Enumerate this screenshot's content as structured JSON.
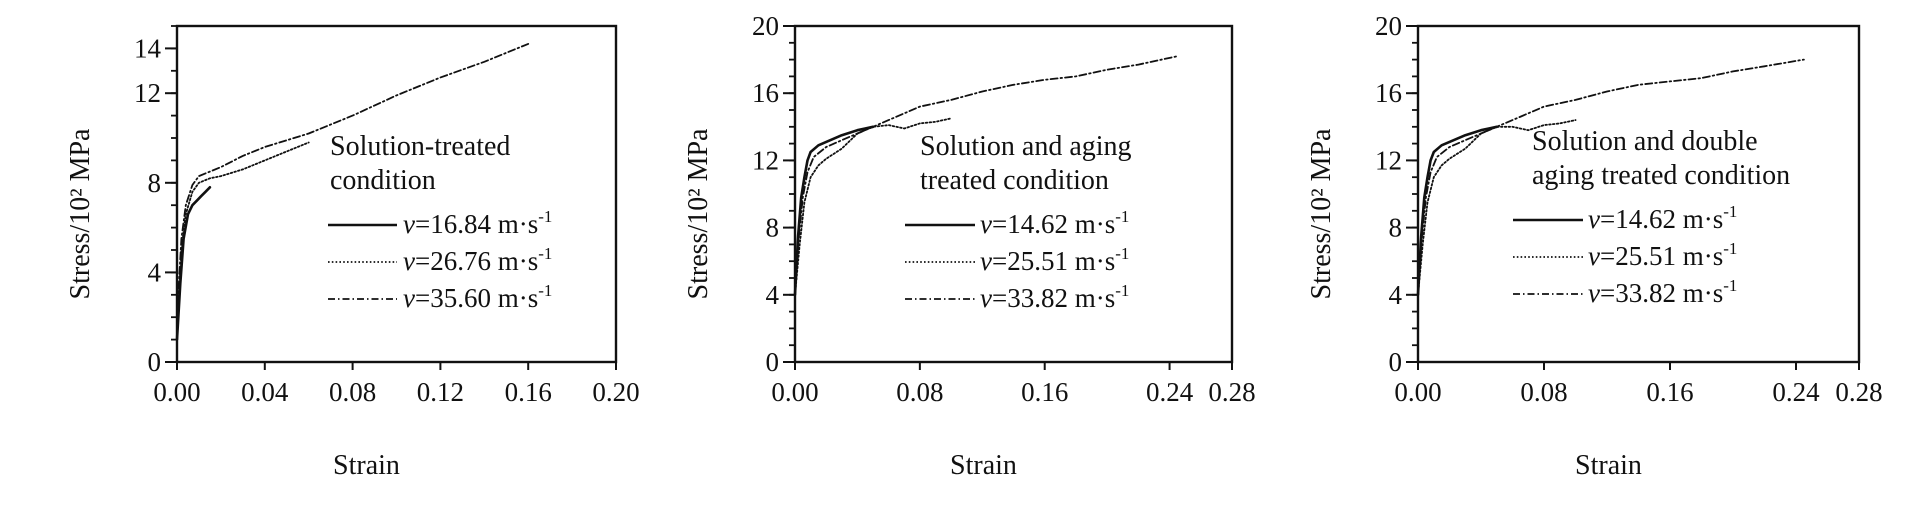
{
  "chart_data": [
    {
      "type": "line",
      "xlabel": "Strain",
      "ylabel": "Stress/10² MPa",
      "xlim": [
        0,
        0.2
      ],
      "ylim": [
        0,
        15
      ],
      "xticks": [
        "0.00",
        "0.04",
        "0.08",
        "0.12",
        "0.16",
        "0.20"
      ],
      "yticks": [
        "0",
        "4",
        "8",
        "12",
        "14"
      ],
      "legend_title": [
        "Solution-treated",
        "condition"
      ],
      "series": [
        {
          "name": "v=16.84 m·s-1",
          "label_prefix": "v",
          "label_value": "=16.84 m·s",
          "label_sup": "-1",
          "style": "solid",
          "x": [
            0.0,
            0.0015,
            0.003,
            0.005,
            0.007,
            0.009,
            0.011,
            0.013,
            0.015
          ],
          "y": [
            1.0,
            3.5,
            5.5,
            6.6,
            7.0,
            7.2,
            7.4,
            7.6,
            7.8
          ]
        },
        {
          "name": "v=26.76 m·s-1",
          "label_prefix": "v",
          "label_value": "=26.76 m·s",
          "label_sup": "-1",
          "style": "dotted",
          "x": [
            0.0,
            0.002,
            0.004,
            0.007,
            0.01,
            0.015,
            0.02,
            0.03,
            0.04,
            0.05,
            0.06
          ],
          "y": [
            1.5,
            5.0,
            6.6,
            7.6,
            8.0,
            8.2,
            8.3,
            8.6,
            9.0,
            9.4,
            9.8
          ]
        },
        {
          "name": "v=35.60 m·s-1",
          "label_prefix": "v",
          "label_value": "=35.60 m·s",
          "label_sup": "-1",
          "style": "dashdot",
          "x": [
            0.0,
            0.002,
            0.004,
            0.007,
            0.01,
            0.02,
            0.03,
            0.04,
            0.06,
            0.08,
            0.1,
            0.12,
            0.14,
            0.16
          ],
          "y": [
            2.0,
            5.5,
            7.0,
            7.9,
            8.3,
            8.7,
            9.2,
            9.6,
            10.2,
            11.0,
            11.9,
            12.7,
            13.4,
            14.2
          ]
        }
      ]
    },
    {
      "type": "line",
      "xlabel": "Strain",
      "ylabel": "Stress/10² MPa",
      "xlim": [
        0,
        0.28
      ],
      "ylim": [
        0,
        20
      ],
      "xticks": [
        "0.00",
        "0.08",
        "0.16",
        "0.24",
        "0.28"
      ],
      "yticks": [
        "0",
        "4",
        "8",
        "12",
        "16",
        "20"
      ],
      "legend_title": [
        "Solution and aging",
        "treated condition"
      ],
      "series": [
        {
          "name": "v=14.62 m·s-1",
          "label_prefix": "v",
          "label_value": "=14.62 m·s",
          "label_sup": "-1",
          "style": "solid",
          "x": [
            0.0,
            0.002,
            0.004,
            0.006,
            0.008,
            0.01,
            0.015,
            0.02,
            0.03,
            0.04,
            0.05
          ],
          "y": [
            4.0,
            7.5,
            9.8,
            11.0,
            12.0,
            12.5,
            12.9,
            13.1,
            13.5,
            13.8,
            14.0
          ]
        },
        {
          "name": "v=25.51 m·s-1",
          "label_prefix": "v",
          "label_value": "=25.51 m·s",
          "label_sup": "-1",
          "style": "dotted",
          "x": [
            0.0,
            0.003,
            0.006,
            0.01,
            0.015,
            0.02,
            0.03,
            0.04,
            0.05,
            0.06,
            0.07,
            0.08,
            0.09,
            0.1
          ],
          "y": [
            4.0,
            7.0,
            9.5,
            11.0,
            11.7,
            12.1,
            12.7,
            13.6,
            14.0,
            14.1,
            13.9,
            14.2,
            14.3,
            14.5
          ]
        },
        {
          "name": "v=33.82 m·s-1",
          "label_prefix": "v",
          "label_value": "=33.82 m·s",
          "label_sup": "-1",
          "style": "dashdot",
          "x": [
            0.0,
            0.002,
            0.005,
            0.008,
            0.012,
            0.02,
            0.03,
            0.04,
            0.06,
            0.08,
            0.1,
            0.12,
            0.14,
            0.16,
            0.18,
            0.2,
            0.22,
            0.245
          ],
          "y": [
            4.0,
            7.0,
            9.8,
            11.3,
            12.2,
            12.8,
            13.2,
            13.6,
            14.4,
            15.2,
            15.6,
            16.1,
            16.5,
            16.8,
            17.0,
            17.4,
            17.7,
            18.2
          ]
        }
      ]
    },
    {
      "type": "line",
      "xlabel": "Strain",
      "ylabel": "Stress/10² MPa",
      "xlim": [
        0,
        0.28
      ],
      "ylim": [
        0,
        20
      ],
      "xticks": [
        "0.00",
        "0.08",
        "0.16",
        "0.24",
        "0.28"
      ],
      "yticks": [
        "0",
        "4",
        "8",
        "12",
        "16",
        "20"
      ],
      "legend_title": [
        "Solution and double",
        "aging treated condition"
      ],
      "series": [
        {
          "name": "v=14.62 m·s-1",
          "label_prefix": "v",
          "label_value": "=14.62 m·s",
          "label_sup": "-1",
          "style": "solid",
          "x": [
            0.0,
            0.002,
            0.004,
            0.006,
            0.008,
            0.01,
            0.015,
            0.02,
            0.03,
            0.04,
            0.05
          ],
          "y": [
            4.0,
            7.5,
            9.8,
            11.0,
            12.0,
            12.5,
            12.9,
            13.1,
            13.5,
            13.8,
            14.0
          ]
        },
        {
          "name": "v=25.51 m·s-1",
          "label_prefix": "v",
          "label_value": "=25.51 m·s",
          "label_sup": "-1",
          "style": "dotted",
          "x": [
            0.0,
            0.003,
            0.006,
            0.01,
            0.015,
            0.02,
            0.03,
            0.04,
            0.05,
            0.06,
            0.07,
            0.08,
            0.09,
            0.1
          ],
          "y": [
            4.0,
            7.0,
            9.5,
            11.0,
            11.7,
            12.1,
            12.7,
            13.6,
            14.0,
            14.0,
            13.8,
            14.1,
            14.2,
            14.4
          ]
        },
        {
          "name": "v=33.82 m·s-1",
          "label_prefix": "v",
          "label_value": "=33.82 m·s",
          "label_sup": "-1",
          "style": "dashdot",
          "x": [
            0.0,
            0.002,
            0.005,
            0.008,
            0.012,
            0.02,
            0.03,
            0.04,
            0.06,
            0.08,
            0.1,
            0.12,
            0.14,
            0.16,
            0.18,
            0.2,
            0.22,
            0.245
          ],
          "y": [
            4.0,
            7.0,
            9.8,
            11.3,
            12.2,
            12.8,
            13.2,
            13.6,
            14.4,
            15.2,
            15.6,
            16.1,
            16.5,
            16.7,
            16.9,
            17.3,
            17.6,
            18.0
          ]
        }
      ]
    }
  ]
}
